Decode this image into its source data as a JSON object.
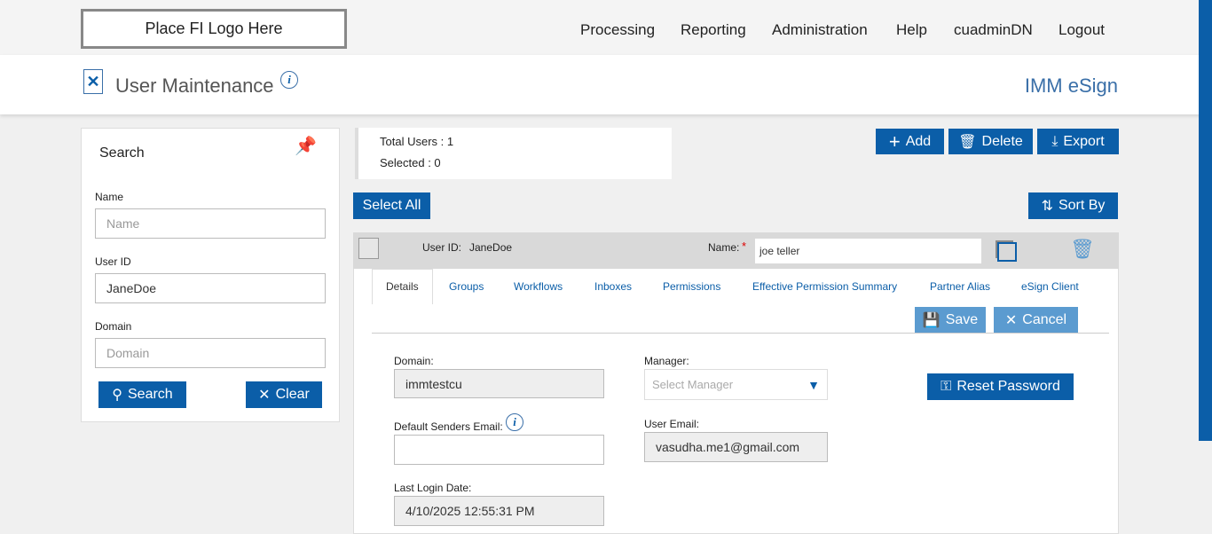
{
  "logo": "Place FI Logo Here",
  "nav": [
    "Processing",
    "Reporting",
    "Administration",
    "Help",
    "cuadminDN",
    "Logout"
  ],
  "header": {
    "title": "User Maintenance",
    "brand": "IMM eSign"
  },
  "search": {
    "title": "Search",
    "name_label": "Name",
    "name_placeholder": "Name",
    "userid_label": "User ID",
    "userid_value": "JaneDoe",
    "domain_label": "Domain",
    "domain_placeholder": "Domain",
    "search_btn": "Search",
    "clear_btn": "Clear"
  },
  "summary": {
    "total": "Total Users : 1",
    "selected": "Selected : 0"
  },
  "toolbar": {
    "add": "Add",
    "delete": "Delete",
    "export": "Export",
    "select_all": "Select All",
    "sort_by": "Sort By"
  },
  "user": {
    "userid_label": "User ID:",
    "userid": "JaneDoe",
    "name_label": "Name:",
    "required": "*",
    "name": "joe teller"
  },
  "tabs": [
    "Details",
    "Groups",
    "Workflows",
    "Inboxes",
    "Permissions",
    "Effective Permission Summary",
    "Partner Alias",
    "eSign Client"
  ],
  "actions": {
    "save": "Save",
    "cancel": "Cancel",
    "reset": "Reset Password"
  },
  "details": {
    "domain_label": "Domain:",
    "domain": "immtestcu",
    "manager_label": "Manager:",
    "manager_placeholder": "Select Manager",
    "senders_label": "Default Senders Email:",
    "senders": "",
    "email_label": "User Email:",
    "email": "vasudha.me1@gmail.com",
    "login_label": "Last Login Date:",
    "login": "4/10/2025 12:55:31 PM"
  },
  "colors": {
    "primary": "#0b5ea8",
    "disabled": "#5b9bd0"
  }
}
